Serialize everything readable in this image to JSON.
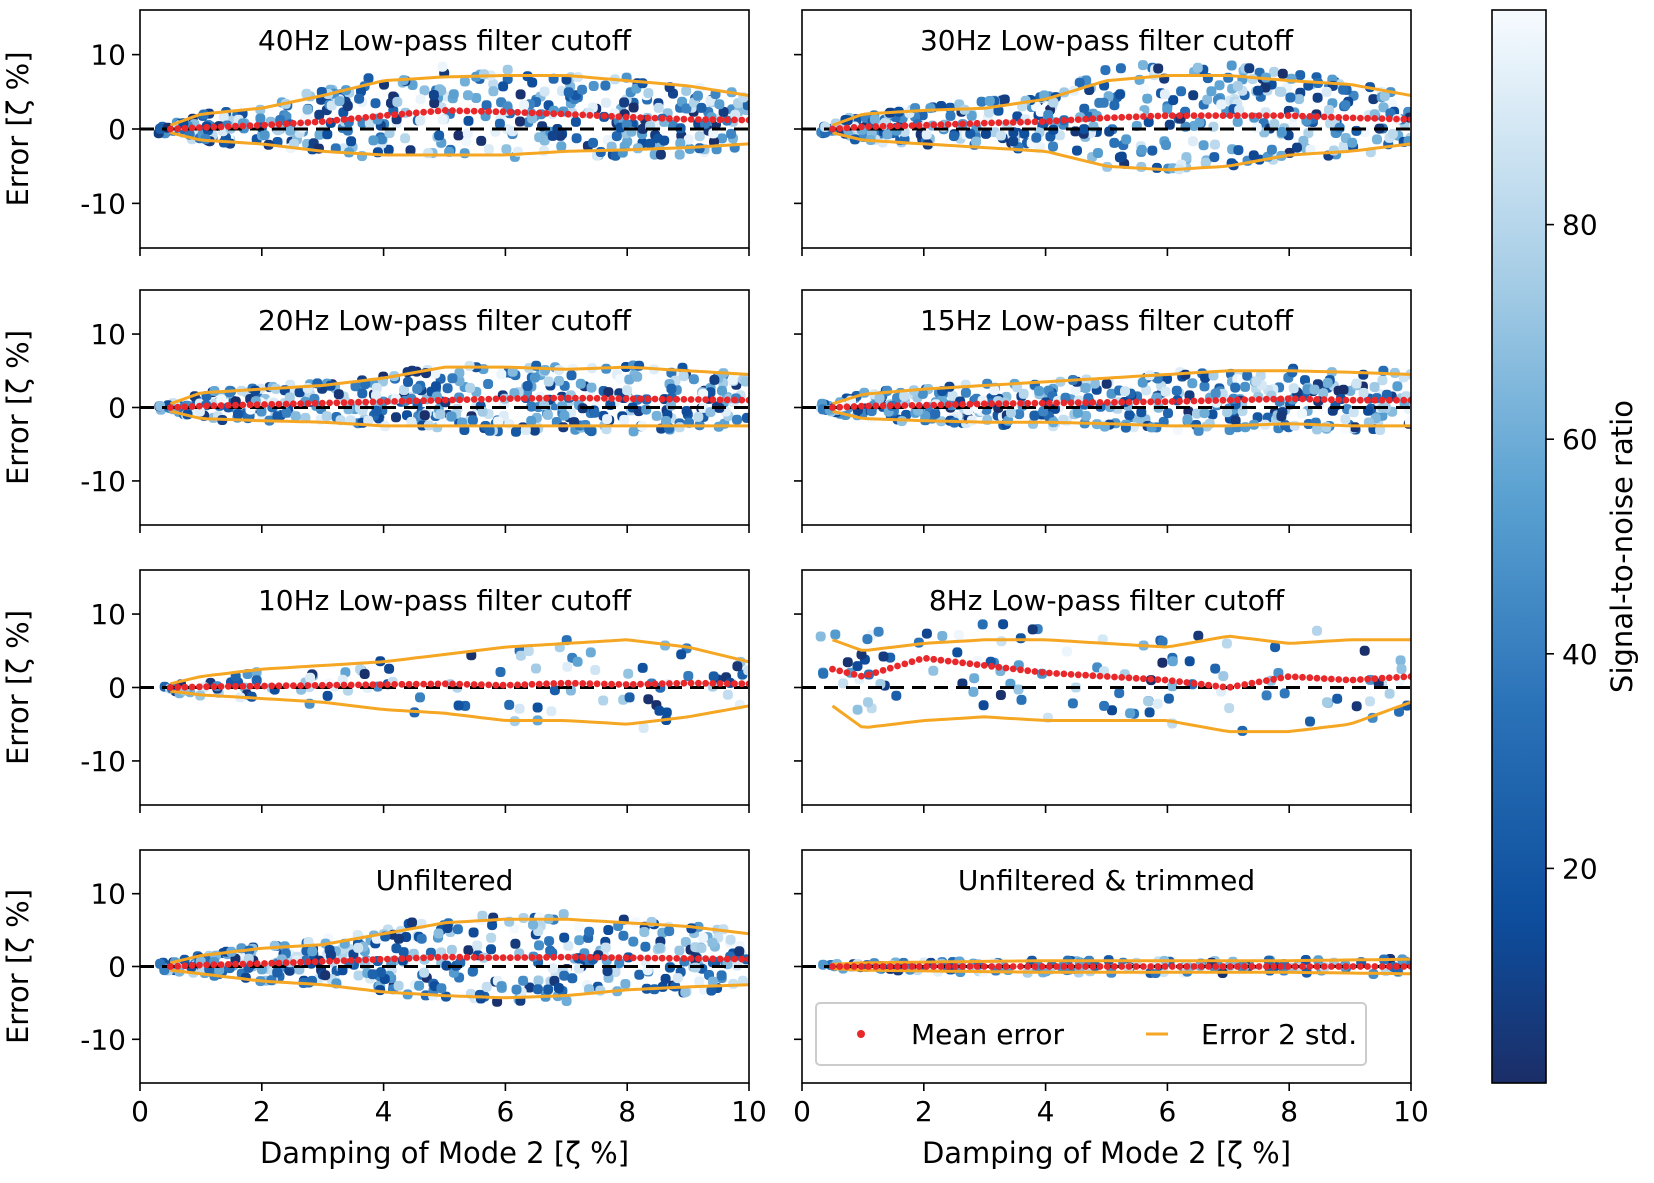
{
  "chart_data": {
    "type": "scatter",
    "layout": "4 rows x 2 columns, shared axes",
    "xlabel": "Damping of Mode 2 [ζ %]",
    "ylabel": "Error [ζ %]",
    "xlim": [
      0,
      10
    ],
    "ylim": [
      -16,
      16
    ],
    "xticks": [
      0,
      2,
      4,
      6,
      8,
      10
    ],
    "yticks": [
      -10,
      0,
      10
    ],
    "reference_line": {
      "y": 0,
      "style": "dashed",
      "color": "#000000"
    },
    "colorbar": {
      "label": "Signal-to-noise ratio",
      "ticks": [
        20,
        40,
        60,
        80
      ],
      "range": [
        0,
        100
      ],
      "colormap": "Blues_r",
      "low_color": "#1b2e68",
      "high_color": "#f7fbff"
    },
    "legend": {
      "position": "bottom-left of last panel",
      "entries": [
        {
          "label": "Mean error",
          "marker": "dot",
          "color": "#e8282b"
        },
        {
          "label": "Error 2 std.",
          "marker": "dash",
          "color": "#f5a623"
        }
      ]
    },
    "panels": [
      {
        "title": "40Hz Low-pass filter cutoff",
        "x": [
          0.5,
          1,
          2,
          3,
          4,
          5,
          6,
          7,
          8,
          9,
          10
        ],
        "mean_error": [
          0.0,
          0.2,
          0.5,
          1.0,
          1.8,
          2.5,
          2.3,
          2.0,
          1.6,
          1.3,
          1.2
        ],
        "upper_2std": [
          0.5,
          2.0,
          2.8,
          4.5,
          6.5,
          7.0,
          7.2,
          7.2,
          6.5,
          5.8,
          4.5
        ],
        "lower_2std": [
          -0.5,
          -1.5,
          -2.0,
          -3.0,
          -3.5,
          -3.5,
          -3.5,
          -3.0,
          -2.8,
          -2.5,
          -2.0
        ]
      },
      {
        "title": "30Hz Low-pass filter cutoff",
        "x": [
          0.5,
          1,
          2,
          3,
          4,
          5,
          6,
          7,
          8,
          9,
          10
        ],
        "mean_error": [
          0.0,
          0.3,
          0.5,
          0.8,
          1.0,
          1.5,
          1.8,
          1.8,
          1.8,
          1.5,
          1.3
        ],
        "upper_2std": [
          0.5,
          2.0,
          2.5,
          2.8,
          4.0,
          6.5,
          7.2,
          7.2,
          6.5,
          6.0,
          4.5
        ],
        "lower_2std": [
          -0.5,
          -1.5,
          -2.0,
          -2.5,
          -3.0,
          -5.0,
          -5.5,
          -5.0,
          -3.5,
          -3.0,
          -2.0
        ]
      },
      {
        "title": "20Hz Low-pass filter cutoff",
        "x": [
          0.5,
          1,
          2,
          3,
          4,
          5,
          6,
          7,
          8,
          9,
          10
        ],
        "mean_error": [
          0.0,
          0.2,
          0.4,
          0.6,
          0.8,
          1.0,
          1.2,
          1.3,
          1.2,
          1.1,
          1.0
        ],
        "upper_2std": [
          0.5,
          2.0,
          2.5,
          3.0,
          4.0,
          5.5,
          5.5,
          5.2,
          5.5,
          5.0,
          4.5
        ],
        "lower_2std": [
          -0.5,
          -1.5,
          -1.8,
          -2.0,
          -2.5,
          -2.5,
          -2.5,
          -2.5,
          -2.5,
          -2.5,
          -2.5
        ]
      },
      {
        "title": "15Hz Low-pass filter cutoff",
        "x": [
          0.5,
          1,
          2,
          3,
          4,
          5,
          6,
          7,
          8,
          9,
          10
        ],
        "mean_error": [
          0.0,
          0.2,
          0.3,
          0.5,
          0.6,
          0.7,
          0.8,
          1.0,
          1.2,
          1.0,
          1.0
        ],
        "upper_2std": [
          0.5,
          1.8,
          2.5,
          3.0,
          3.5,
          4.0,
          4.5,
          5.0,
          5.0,
          4.8,
          4.5
        ],
        "lower_2std": [
          -0.5,
          -1.5,
          -1.8,
          -2.0,
          -2.0,
          -2.2,
          -2.5,
          -2.5,
          -2.2,
          -2.5,
          -2.5
        ]
      },
      {
        "title": "10Hz Low-pass filter cutoff",
        "x": [
          0.5,
          1,
          2,
          3,
          4,
          5,
          6,
          7,
          8,
          9,
          10
        ],
        "mean_error": [
          0.0,
          0.1,
          0.2,
          0.3,
          0.4,
          0.5,
          0.3,
          0.6,
          0.4,
          0.6,
          0.5
        ],
        "upper_2std": [
          0.5,
          1.5,
          2.5,
          3.0,
          3.5,
          4.5,
          5.5,
          6.0,
          6.5,
          5.5,
          3.5
        ],
        "lower_2std": [
          -0.5,
          -1.0,
          -1.5,
          -2.0,
          -3.0,
          -3.5,
          -4.5,
          -4.5,
          -5.0,
          -4.0,
          -2.5
        ]
      },
      {
        "title": "8Hz Low-pass filter cutoff",
        "x": [
          0.5,
          1,
          2,
          3,
          4,
          5,
          6,
          7,
          8,
          9,
          10
        ],
        "mean_error": [
          2.5,
          1.5,
          4.0,
          3.0,
          2.0,
          1.5,
          1.0,
          0.0,
          1.5,
          1.0,
          1.5
        ],
        "upper_2std": [
          6.5,
          5.0,
          6.0,
          6.5,
          6.5,
          6.0,
          5.5,
          7.0,
          6.0,
          6.5,
          6.5
        ],
        "lower_2std": [
          -2.5,
          -5.5,
          -4.5,
          -4.0,
          -4.5,
          -4.5,
          -4.5,
          -6.0,
          -6.0,
          -5.0,
          -2.0
        ]
      },
      {
        "title": "Unfiltered",
        "x": [
          0.5,
          1,
          2,
          3,
          4,
          5,
          6,
          7,
          8,
          9,
          10
        ],
        "mean_error": [
          0.0,
          0.2,
          0.4,
          0.7,
          1.0,
          1.3,
          1.2,
          1.3,
          1.2,
          1.1,
          1.0
        ],
        "upper_2std": [
          0.5,
          1.5,
          2.5,
          3.0,
          4.5,
          6.0,
          6.5,
          6.5,
          6.0,
          5.5,
          4.5
        ],
        "lower_2std": [
          -0.5,
          -1.0,
          -2.0,
          -2.5,
          -3.5,
          -4.0,
          -4.3,
          -4.0,
          -3.2,
          -2.8,
          -2.5
        ]
      },
      {
        "title": "Unfiltered & trimmed",
        "x": [
          0.5,
          1,
          2,
          3,
          4,
          5,
          6,
          7,
          8,
          9,
          10
        ],
        "mean_error": [
          0.0,
          0.0,
          0.0,
          0.0,
          0.0,
          0.0,
          0.0,
          0.0,
          0.0,
          0.0,
          0.0
        ],
        "upper_2std": [
          0.3,
          0.5,
          0.6,
          0.7,
          0.8,
          0.8,
          0.8,
          0.8,
          0.8,
          0.9,
          1.0
        ],
        "lower_2std": [
          -0.3,
          -0.5,
          -0.6,
          -0.7,
          -0.8,
          -0.8,
          -0.8,
          -0.8,
          -0.8,
          -0.9,
          -1.0
        ]
      }
    ]
  }
}
